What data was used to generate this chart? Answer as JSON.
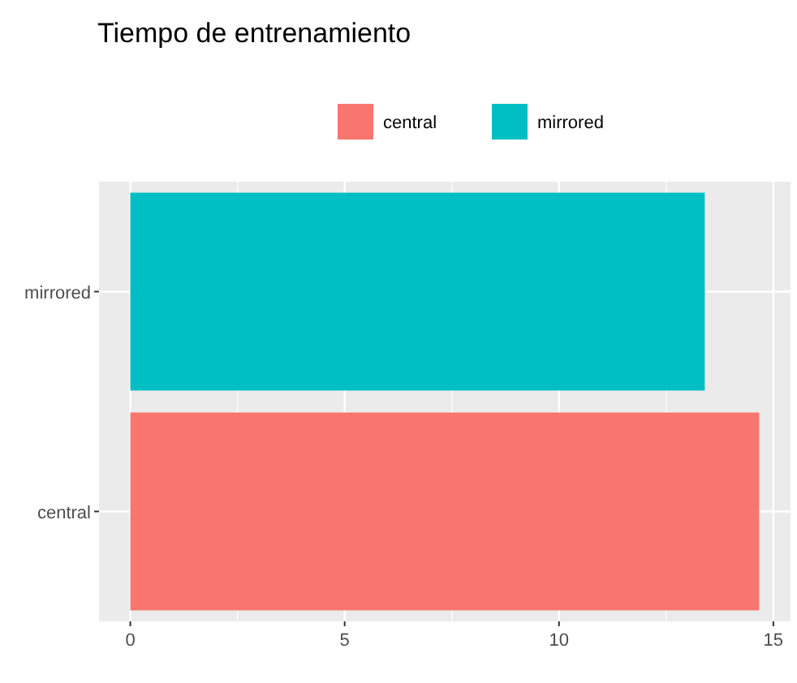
{
  "chart_data": {
    "type": "bar",
    "orientation": "horizontal",
    "title": "Tiempo de entrenamiento",
    "categories": [
      "mirrored",
      "central"
    ],
    "series": [
      {
        "name": "central",
        "color": "#f8766d",
        "values": [
          null,
          14.67
        ]
      },
      {
        "name": "mirrored",
        "color": "#00bfc4",
        "values": [
          13.4,
          null
        ]
      }
    ],
    "xlim": [
      -0.73,
      15.4
    ],
    "xticks": [
      0,
      {
        "value": 2.5,
        "label": null
      },
      5,
      {
        "value": 7.5,
        "label": null
      },
      10,
      {
        "value": 12.5,
        "label": null
      },
      15
    ],
    "grid": true,
    "legend": "top"
  }
}
